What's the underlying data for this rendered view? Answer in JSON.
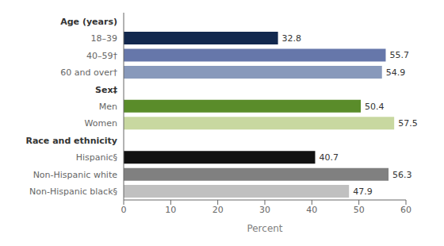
{
  "chart_data": {
    "type": "bar",
    "orientation": "horizontal",
    "categories": [
      "Age (years)",
      "18–39",
      "40–59†",
      "60 and over†",
      "Sex‡",
      "Men",
      "Women",
      "Race and ethnicity",
      "Hispanic§",
      "Non-Hispanic white",
      "Non-Hispanic black§"
    ],
    "values": [
      null,
      32.8,
      55.7,
      54.9,
      null,
      50.4,
      57.5,
      null,
      40.7,
      56.3,
      47.9
    ],
    "colors": [
      null,
      "#12284e",
      "#6677aa",
      "#8899bb",
      null,
      "#5a8c2a",
      "#c8d8a0",
      null,
      "#111111",
      "#808080",
      "#c0c0c0"
    ],
    "xlabel": "Percent",
    "xlim": [
      0,
      60
    ],
    "xticks": [
      0,
      10,
      20,
      30,
      40,
      50,
      60
    ],
    "data_labels": true,
    "grid": false
  }
}
